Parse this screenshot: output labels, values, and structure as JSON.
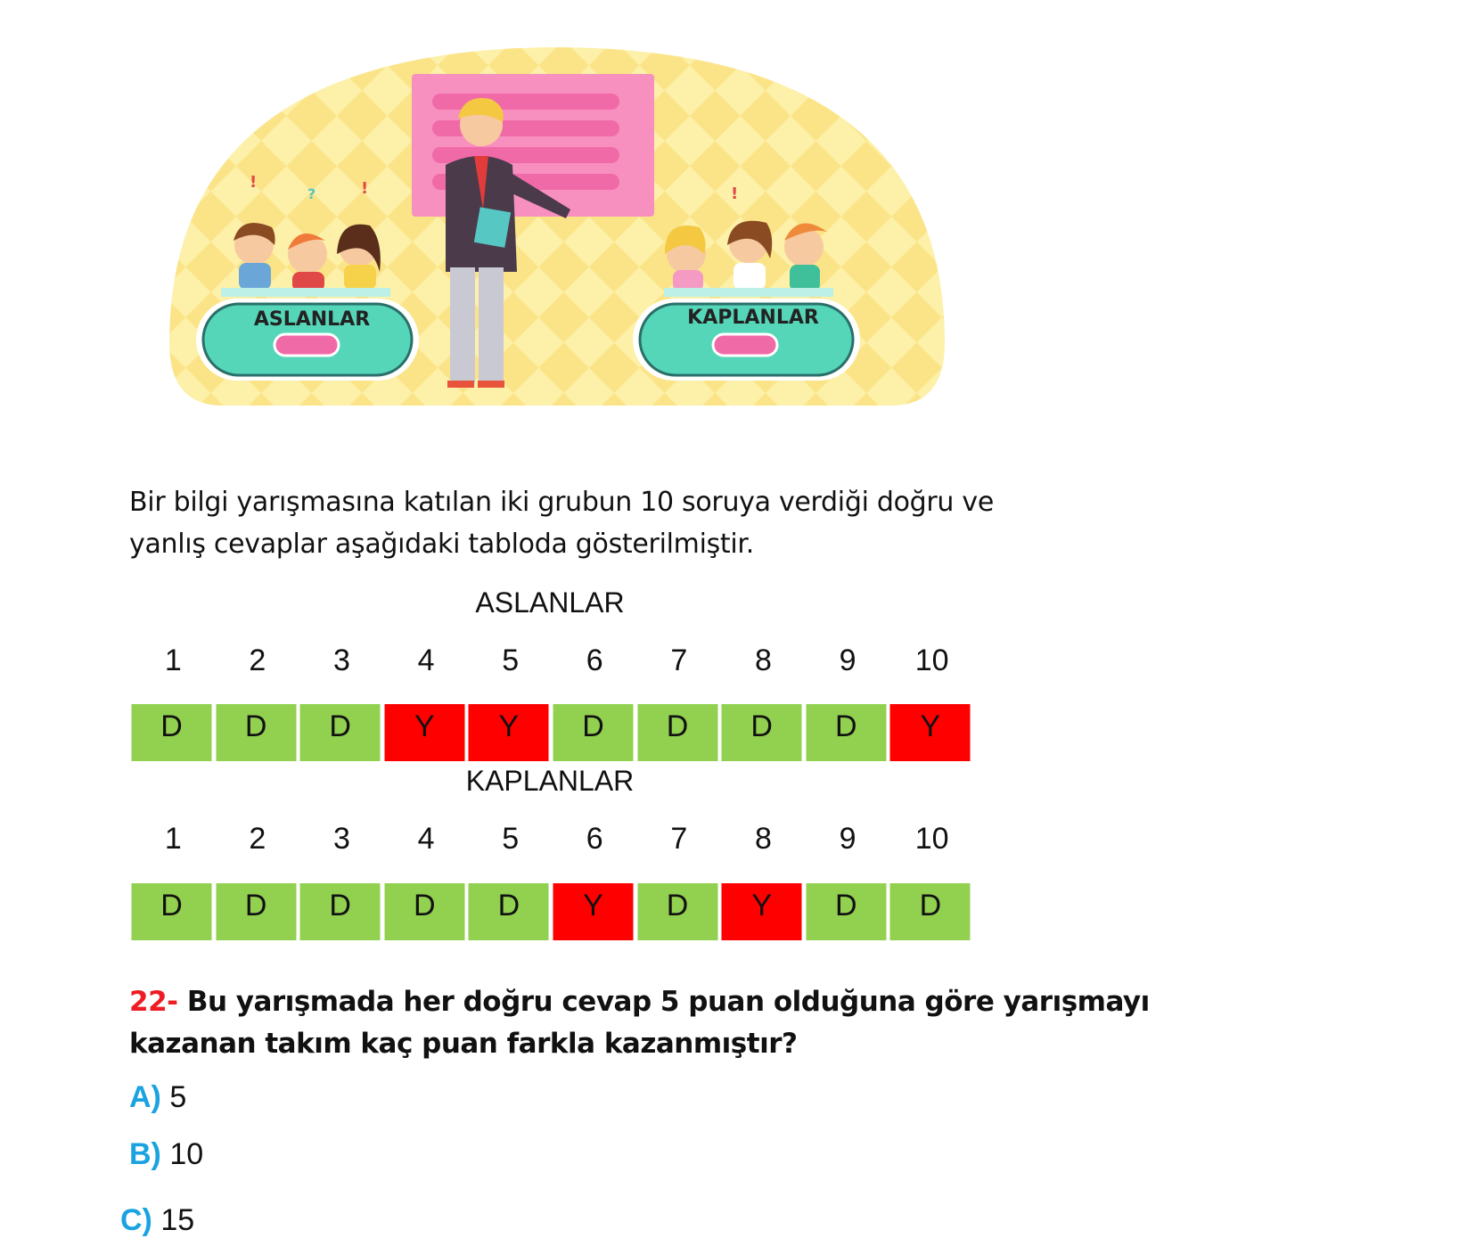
{
  "illustration": {
    "team_left_label": "ASLANLAR",
    "team_right_label": "KAPLANLAR"
  },
  "intro": {
    "line1": "Bir bilgi yarışmasına katılan iki grubun 10 soruya verdiği doğru ve",
    "line2": "yanlış cevaplar aşağıdaki tabloda gösterilmiştir."
  },
  "colors": {
    "correct": "#92d050",
    "wrong": "#ff0000",
    "question_number": "#ee1c24",
    "option_letter": "#1aa3e0"
  },
  "tables": [
    {
      "title": "ASLANLAR",
      "questions": [
        "1",
        "2",
        "3",
        "4",
        "5",
        "6",
        "7",
        "8",
        "9",
        "10"
      ],
      "answers": [
        "D",
        "D",
        "D",
        "Y",
        "Y",
        "D",
        "D",
        "D",
        "D",
        "Y"
      ]
    },
    {
      "title": "KAPLANLAR",
      "questions": [
        "1",
        "2",
        "3",
        "4",
        "5",
        "6",
        "7",
        "8",
        "9",
        "10"
      ],
      "answers": [
        "D",
        "D",
        "D",
        "D",
        "D",
        "Y",
        "D",
        "Y",
        "D",
        "D"
      ]
    }
  ],
  "question": {
    "number": "22-",
    "line1": "Bu yarışmada her doğru cevap 5 puan olduğuna göre yarışmayı",
    "line2": "kazanan takım kaç puan farkla kazanmıştır?"
  },
  "options": [
    {
      "letter": "A)",
      "text": "5"
    },
    {
      "letter": "B)",
      "text": "10"
    },
    {
      "letter": "C)",
      "text": "15"
    }
  ]
}
